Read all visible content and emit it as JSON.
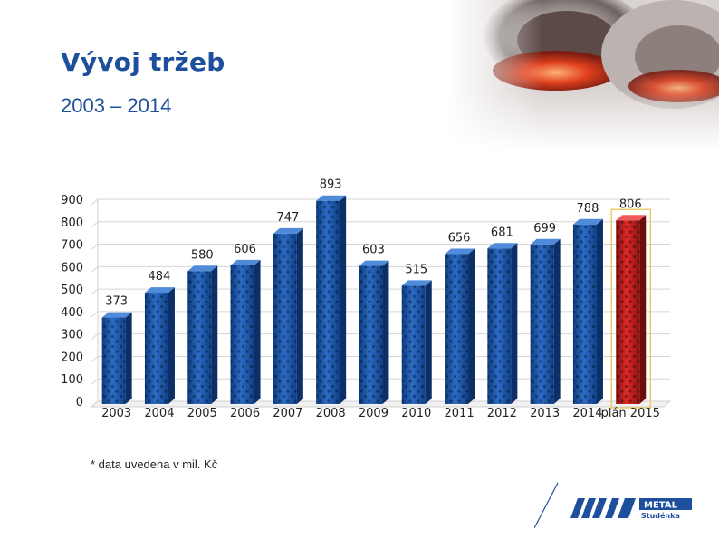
{
  "header": {
    "title": "Vývoj tržeb",
    "subtitle": "2003 – 2014"
  },
  "footnote": "* data uvedena v mil. Kč",
  "logo": {
    "brand": "METAL",
    "sub": "Studénka",
    "brand_color": "#1e4f9c"
  },
  "hero_image": {
    "icon": "steel-ring-photo-icon"
  },
  "chart_data": {
    "type": "bar",
    "categories": [
      "2003",
      "2004",
      "2005",
      "2006",
      "2007",
      "2008",
      "2009",
      "2010",
      "2011",
      "2012",
      "2013",
      "2014",
      "plán 2015"
    ],
    "values": [
      373,
      484,
      580,
      606,
      747,
      893,
      603,
      515,
      656,
      681,
      699,
      788,
      806
    ],
    "title": "",
    "xlabel": "",
    "ylabel": "",
    "ylim": [
      0,
      900
    ],
    "yticks": [
      0,
      100,
      200,
      300,
      400,
      500,
      600,
      700,
      800,
      900
    ],
    "grid": true,
    "legend": "none",
    "colors": {
      "default_bar": "#1c55a8",
      "highlight_bar": "#c41e1e",
      "highlight_category": "plán 2015"
    }
  }
}
